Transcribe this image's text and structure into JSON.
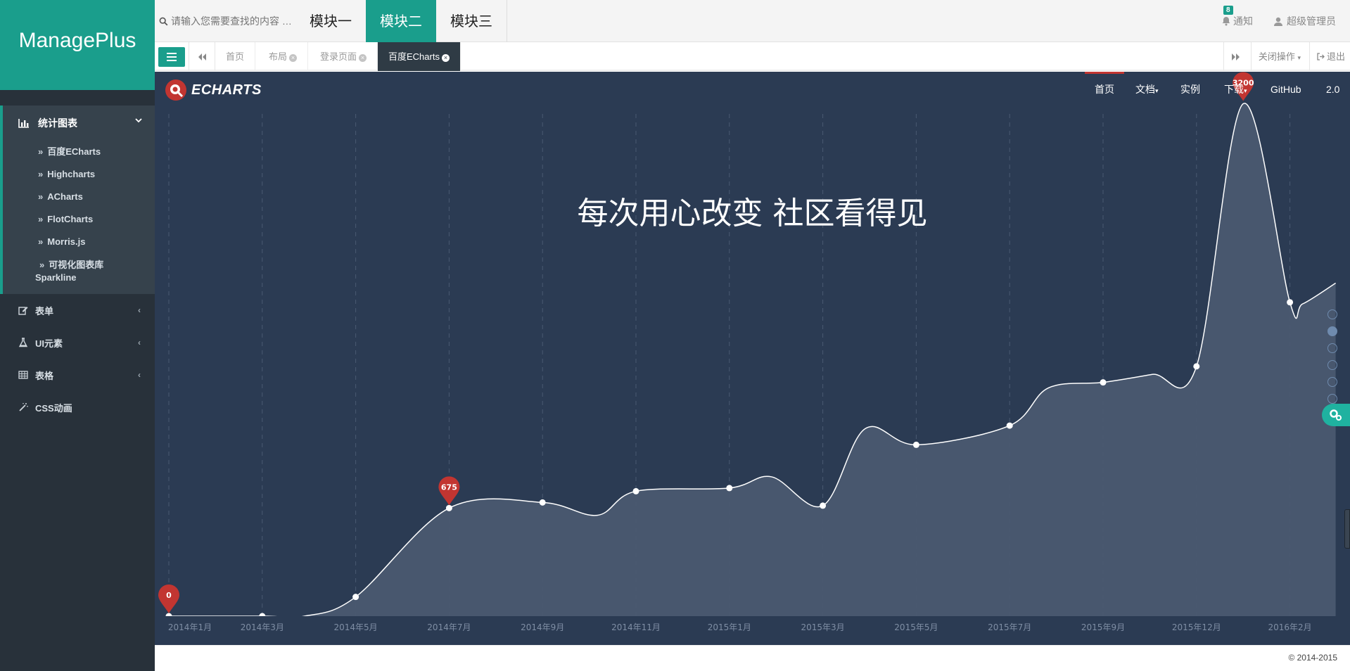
{
  "app": {
    "brand": "ManagePlus"
  },
  "sidebar": {
    "group": {
      "label": "统计图表",
      "items": [
        {
          "label": "百度ECharts"
        },
        {
          "label": "Highcharts"
        },
        {
          "label": "ACharts"
        },
        {
          "label": "FlotCharts"
        },
        {
          "label": "Morris.js"
        },
        {
          "label": "可视化图表库",
          "label2": "Sparkline"
        }
      ]
    },
    "items": [
      {
        "label": "表单"
      },
      {
        "label": "UI元素"
      },
      {
        "label": "表格"
      },
      {
        "label": "CSS动画"
      }
    ]
  },
  "topbar": {
    "search_placeholder": "请输入您需要查找的内容 …",
    "modules": [
      "模块一",
      "模块二",
      "模块三"
    ],
    "notify_label": "通知",
    "notify_count": "8",
    "user_label": "超级管理员"
  },
  "tabsbar": {
    "tabs": [
      "首页",
      "布局",
      "登录页面",
      "百度ECharts"
    ],
    "close_ops": "关闭操作",
    "logout": "退出"
  },
  "echarts": {
    "logo": "ECHARTS",
    "nav": [
      "首页",
      "文档",
      "实例",
      "下载",
      "GitHub",
      "2.0"
    ],
    "title": "每次用心改变 社区看得见"
  },
  "colors": {
    "accent": "#1a9e8c",
    "marker": "#c23531",
    "chart_bg": "#2b3b53"
  },
  "chart_data": {
    "type": "area",
    "x": [
      "2014年1月",
      "2014年3月",
      "2014年5月",
      "2014年7月",
      "2014年9月",
      "2014年11月",
      "2015年1月",
      "2015年3月",
      "2015年5月",
      "2015年7月",
      "2015年9月",
      "2015年12月",
      "2016年2月"
    ],
    "values": [
      0,
      0,
      120,
      675,
      710,
      780,
      800,
      690,
      1070,
      1190,
      1460,
      1560,
      1960
    ],
    "markers": [
      {
        "label": "0",
        "index": 0
      },
      {
        "label": "675",
        "index": 3
      },
      {
        "label": "3200",
        "x_between": [
          11,
          12
        ]
      }
    ],
    "ylim": [
      0,
      3400
    ],
    "grid": "vertical dashed"
  },
  "footer": {
    "copyright": "© 2014-2015"
  }
}
